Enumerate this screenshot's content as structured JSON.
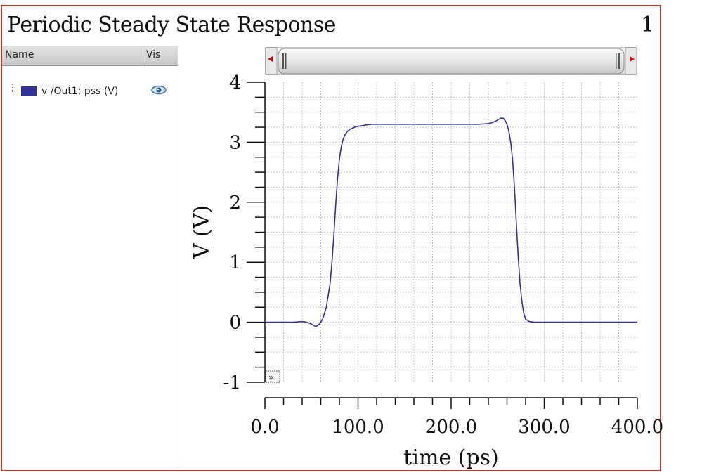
{
  "window": {
    "title": "Periodic Steady State Response",
    "page_number": "1"
  },
  "legend": {
    "header_name": "Name",
    "header_vis": "Vis",
    "series_label": "v /Out1; pss (V)",
    "series_color": "#333399"
  },
  "icons": {
    "visibility": "eye-icon",
    "scroll_left": "triangle-left-icon",
    "scroll_right": "triangle-right-icon",
    "expand": "double-chevron-icon"
  },
  "chart_data": {
    "type": "line",
    "xlabel": "time (ps)",
    "ylabel": "V (V)",
    "xlim": [
      0,
      400
    ],
    "ylim": [
      -1,
      4
    ],
    "x_ticks": [
      "0.0",
      "100.0",
      "200.0",
      "300.0",
      "400.0"
    ],
    "y_ticks": [
      "-1",
      "0",
      "1",
      "2",
      "3",
      "4"
    ],
    "grid": true,
    "series": [
      {
        "color": "#333399",
        "x": [
          0,
          20,
          30,
          40,
          45,
          50,
          53,
          55,
          58,
          62,
          66,
          70,
          72,
          74,
          76,
          78,
          80,
          82,
          84,
          86,
          88,
          90,
          92,
          95,
          98,
          102,
          106,
          110,
          115,
          120,
          130,
          150,
          180,
          210,
          230,
          240,
          245,
          250,
          253,
          256,
          258,
          260,
          262,
          264,
          266,
          268,
          270,
          272,
          274,
          276,
          278,
          280,
          284,
          290,
          300,
          320,
          350,
          400
        ],
        "y": [
          0,
          0,
          0,
          0.01,
          0.0,
          -0.03,
          -0.06,
          -0.07,
          -0.04,
          0.05,
          0.25,
          0.65,
          1.0,
          1.45,
          1.95,
          2.4,
          2.72,
          2.92,
          3.05,
          3.12,
          3.17,
          3.2,
          3.22,
          3.24,
          3.26,
          3.27,
          3.28,
          3.29,
          3.3,
          3.3,
          3.3,
          3.3,
          3.3,
          3.3,
          3.3,
          3.31,
          3.33,
          3.37,
          3.4,
          3.4,
          3.36,
          3.3,
          3.18,
          3.0,
          2.7,
          2.25,
          1.65,
          1.1,
          0.65,
          0.35,
          0.15,
          0.05,
          0.01,
          0.0,
          0.0,
          0.0,
          0.0,
          0.0
        ]
      }
    ]
  }
}
